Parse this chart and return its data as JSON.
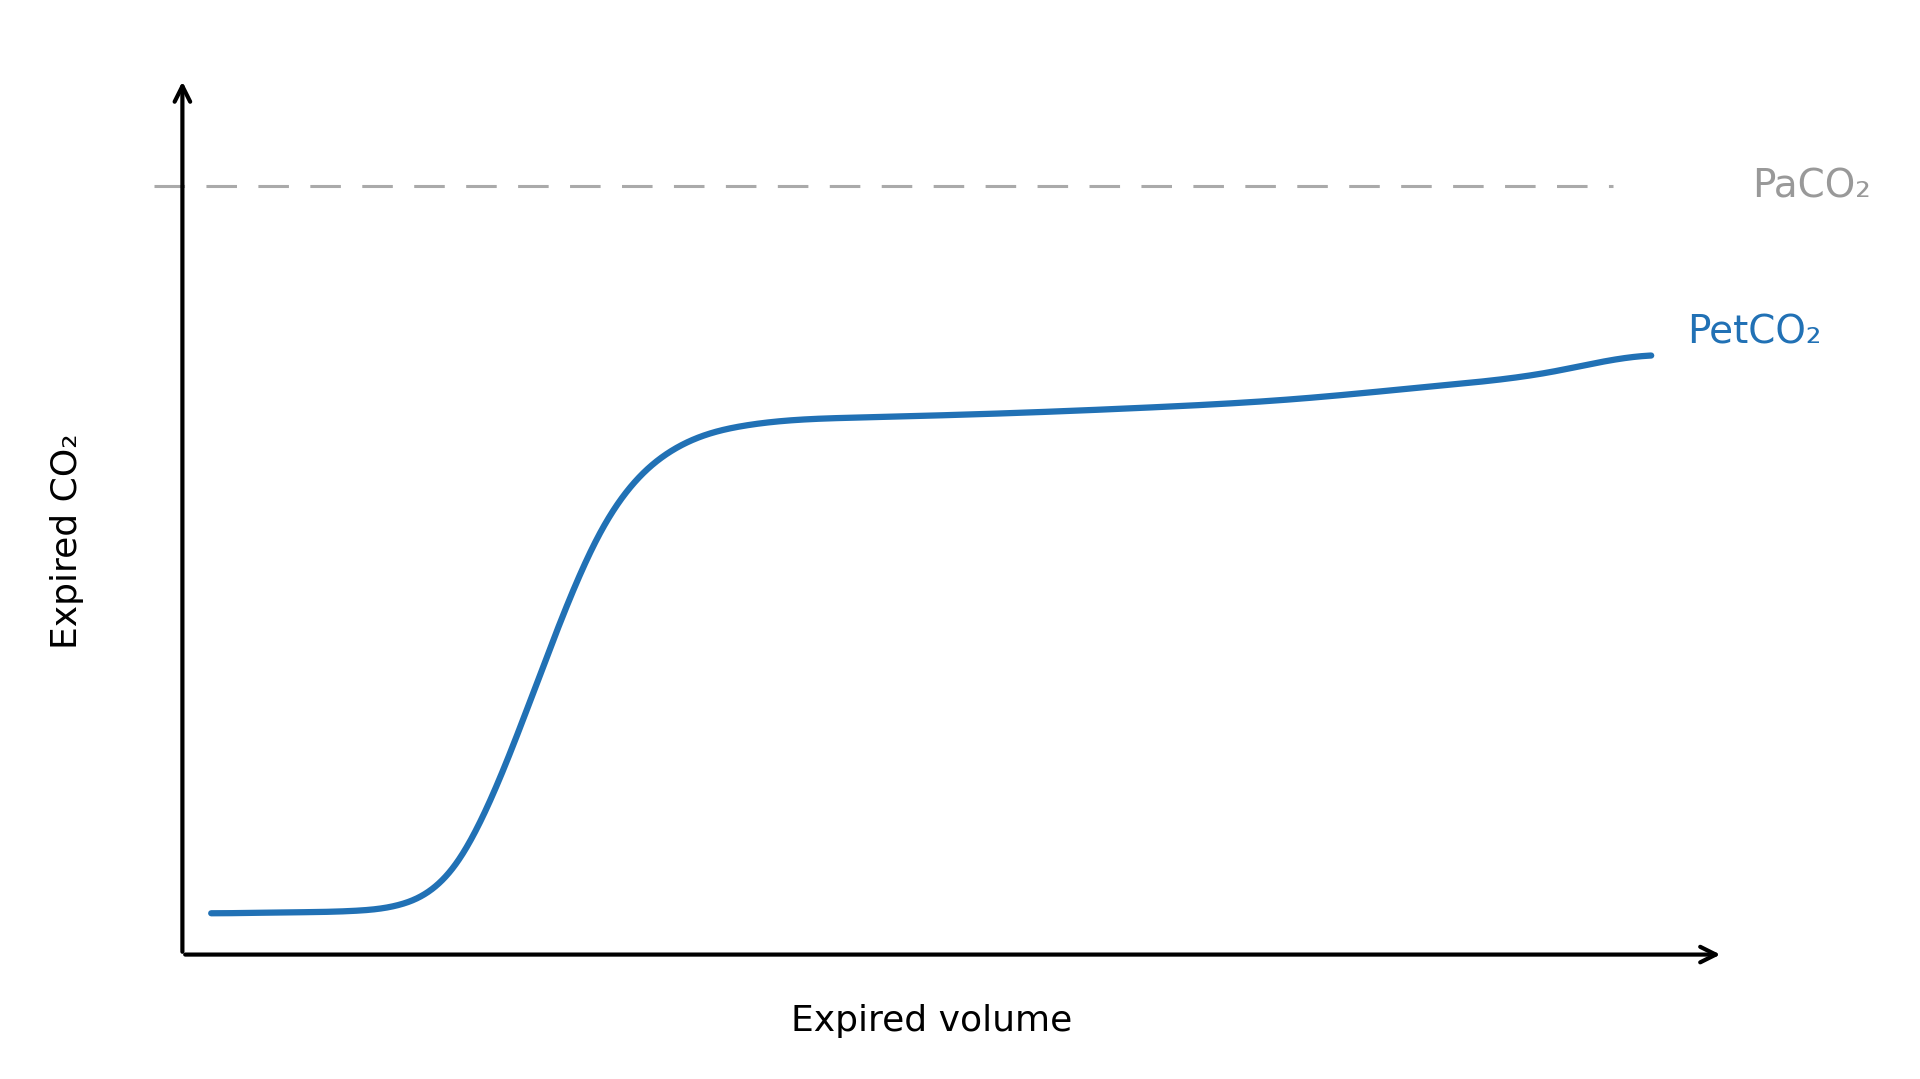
{
  "title": "",
  "xlabel": "Expired volume",
  "ylabel": "Expired CO₂",
  "background_color": "#ffffff",
  "curve_color": "#2171B5",
  "curve_linewidth": 4.5,
  "dashed_line_color": "#aaaaaa",
  "PaCO2_label": "PaCO₂",
  "PaCO2_color": "#999999",
  "PetCO2_label": "PetCO₂",
  "PetCO2_color": "#2171B5",
  "xlabel_fontsize": 26,
  "ylabel_fontsize": 26,
  "annotation_fontsize": 28,
  "axis_linewidth": 3.0,
  "arrow_mutation_scale": 28
}
